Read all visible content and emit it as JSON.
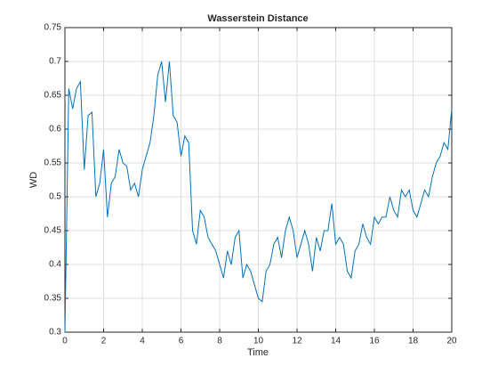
{
  "chart_data": {
    "type": "line",
    "title": "Wasserstein Distance",
    "xlabel": "Time",
    "ylabel": "WD",
    "x": [
      0,
      0.2,
      0.4,
      0.6,
      0.8,
      1,
      1.2,
      1.4,
      1.6,
      1.8,
      2,
      2.2,
      2.4,
      2.6,
      2.8,
      3,
      3.2,
      3.4,
      3.6,
      3.8,
      4,
      4.2,
      4.4,
      4.6,
      4.8,
      5,
      5.2,
      5.4,
      5.6,
      5.8,
      6,
      6.2,
      6.4,
      6.6,
      6.8,
      7,
      7.2,
      7.4,
      7.6,
      7.8,
      8,
      8.2,
      8.4,
      8.6,
      8.8,
      9,
      9.2,
      9.4,
      9.6,
      9.8,
      10,
      10.2,
      10.4,
      10.6,
      10.8,
      11,
      11.2,
      11.4,
      11.6,
      11.8,
      12,
      12.2,
      12.4,
      12.6,
      12.8,
      13,
      13.2,
      13.4,
      13.6,
      13.8,
      14,
      14.2,
      14.4,
      14.6,
      14.8,
      15,
      15.2,
      15.4,
      15.6,
      15.8,
      16,
      16.2,
      16.4,
      16.6,
      16.8,
      17,
      17.2,
      17.4,
      17.6,
      17.8,
      18,
      18.2,
      18.4,
      18.6,
      18.8,
      19,
      19.2,
      19.4,
      19.6,
      19.8,
      20
    ],
    "series": [
      {
        "name": "WD",
        "color": "#0072bd",
        "values": [
          0.3,
          0.66,
          0.63,
          0.66,
          0.67,
          0.54,
          0.62,
          0.625,
          0.5,
          0.52,
          0.57,
          0.47,
          0.52,
          0.53,
          0.57,
          0.55,
          0.545,
          0.51,
          0.52,
          0.5,
          0.54,
          0.56,
          0.58,
          0.62,
          0.68,
          0.7,
          0.64,
          0.7,
          0.62,
          0.61,
          0.56,
          0.59,
          0.58,
          0.45,
          0.43,
          0.48,
          0.47,
          0.44,
          0.43,
          0.42,
          0.4,
          0.38,
          0.42,
          0.4,
          0.44,
          0.45,
          0.38,
          0.4,
          0.39,
          0.37,
          0.35,
          0.345,
          0.39,
          0.4,
          0.43,
          0.44,
          0.41,
          0.45,
          0.47,
          0.45,
          0.41,
          0.43,
          0.45,
          0.43,
          0.39,
          0.44,
          0.42,
          0.45,
          0.45,
          0.49,
          0.43,
          0.44,
          0.43,
          0.39,
          0.38,
          0.42,
          0.43,
          0.46,
          0.44,
          0.43,
          0.47,
          0.46,
          0.47,
          0.47,
          0.5,
          0.48,
          0.47,
          0.51,
          0.5,
          0.51,
          0.48,
          0.47,
          0.49,
          0.51,
          0.5,
          0.53,
          0.55,
          0.56,
          0.58,
          0.57,
          0.63
        ]
      }
    ],
    "xlim": [
      0,
      20
    ],
    "xticks": [
      0,
      2,
      4,
      6,
      8,
      10,
      12,
      14,
      16,
      18,
      20
    ],
    "ylim": [
      0.3,
      0.75
    ],
    "yticks": [
      0.3,
      0.35,
      0.4,
      0.45,
      0.5,
      0.55,
      0.6,
      0.65,
      0.7,
      0.75
    ],
    "grid": true
  }
}
